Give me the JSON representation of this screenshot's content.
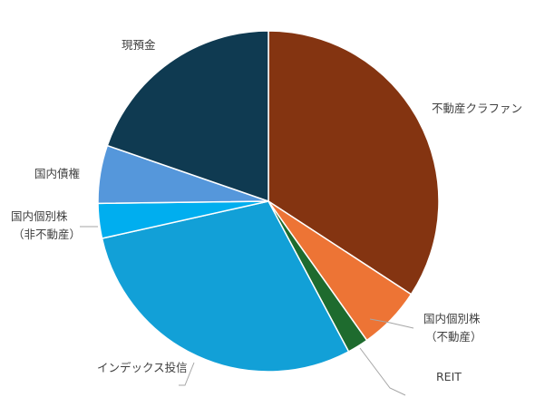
{
  "chart_data": {
    "type": "pie",
    "title": "",
    "slices": [
      {
        "label": "不動産クラファン",
        "value": 34.2,
        "color": "#843411",
        "label_lines": [
          "不動産クラファン"
        ]
      },
      {
        "label": "国内個別株（不動産）",
        "value": 6.0,
        "color": "#ED7435",
        "label_lines": [
          "国内個別株",
          "（不動産）"
        ]
      },
      {
        "label": "REIT",
        "value": 2.0,
        "color": "#1E6B2E",
        "label_lines": [
          "REIT"
        ]
      },
      {
        "label": "インデックス投信",
        "value": 29.3,
        "color": "#12A0D7",
        "label_lines": [
          "インデックス投信"
        ]
      },
      {
        "label": "国内個別株（非不動産）",
        "value": 3.3,
        "color": "#00AEEF",
        "label_lines": [
          "国内個別株",
          "（非不動産）"
        ]
      },
      {
        "label": "国内債権",
        "value": 5.5,
        "color": "#5597DB",
        "label_lines": [
          "国内債権"
        ]
      },
      {
        "label": "現預金",
        "value": 19.7,
        "color": "#0F3A51",
        "label_lines": [
          "現預金"
        ]
      }
    ],
    "start_angle": "12 o'clock",
    "direction": "clockwise",
    "legend": "none"
  }
}
